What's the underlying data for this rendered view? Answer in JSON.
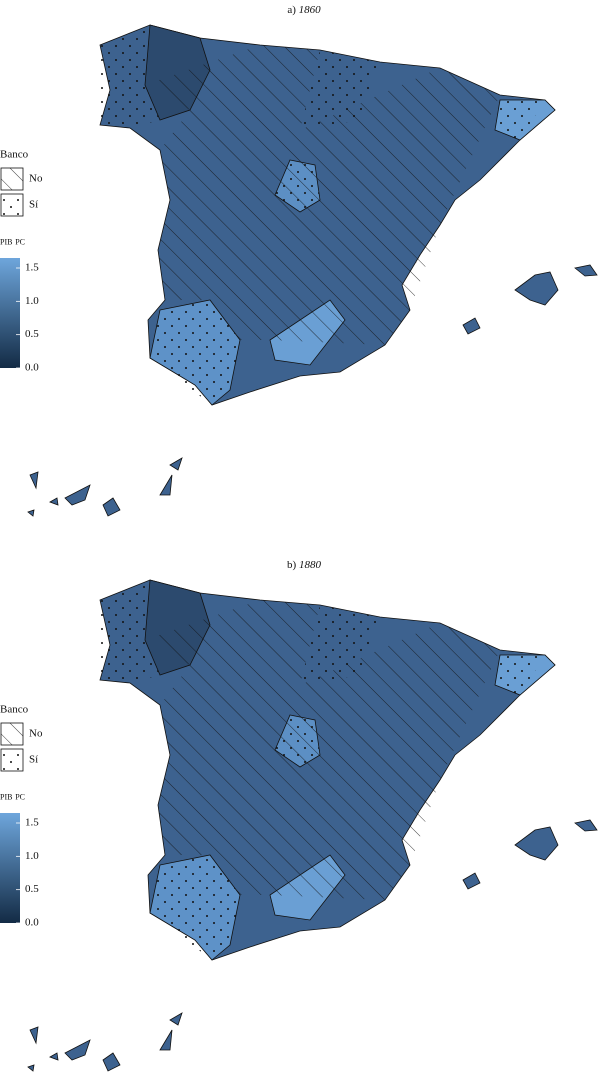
{
  "maps": [
    {
      "label": "a)",
      "year": "1860"
    },
    {
      "label": "b)",
      "year": "1880"
    }
  ],
  "legend": {
    "bank_title": "Banco",
    "bank_options": [
      "No",
      "Sí"
    ],
    "scale_title": "pib pc",
    "scale_lim": [
      0,
      1.65
    ],
    "scale_ticks": [
      {
        "value": 0,
        "label": "0.0"
      },
      {
        "value": 0.5,
        "label": "0.5"
      },
      {
        "value": 1,
        "label": "1.0"
      },
      {
        "value": 1.5,
        "label": "1.5"
      }
    ]
  }
}
